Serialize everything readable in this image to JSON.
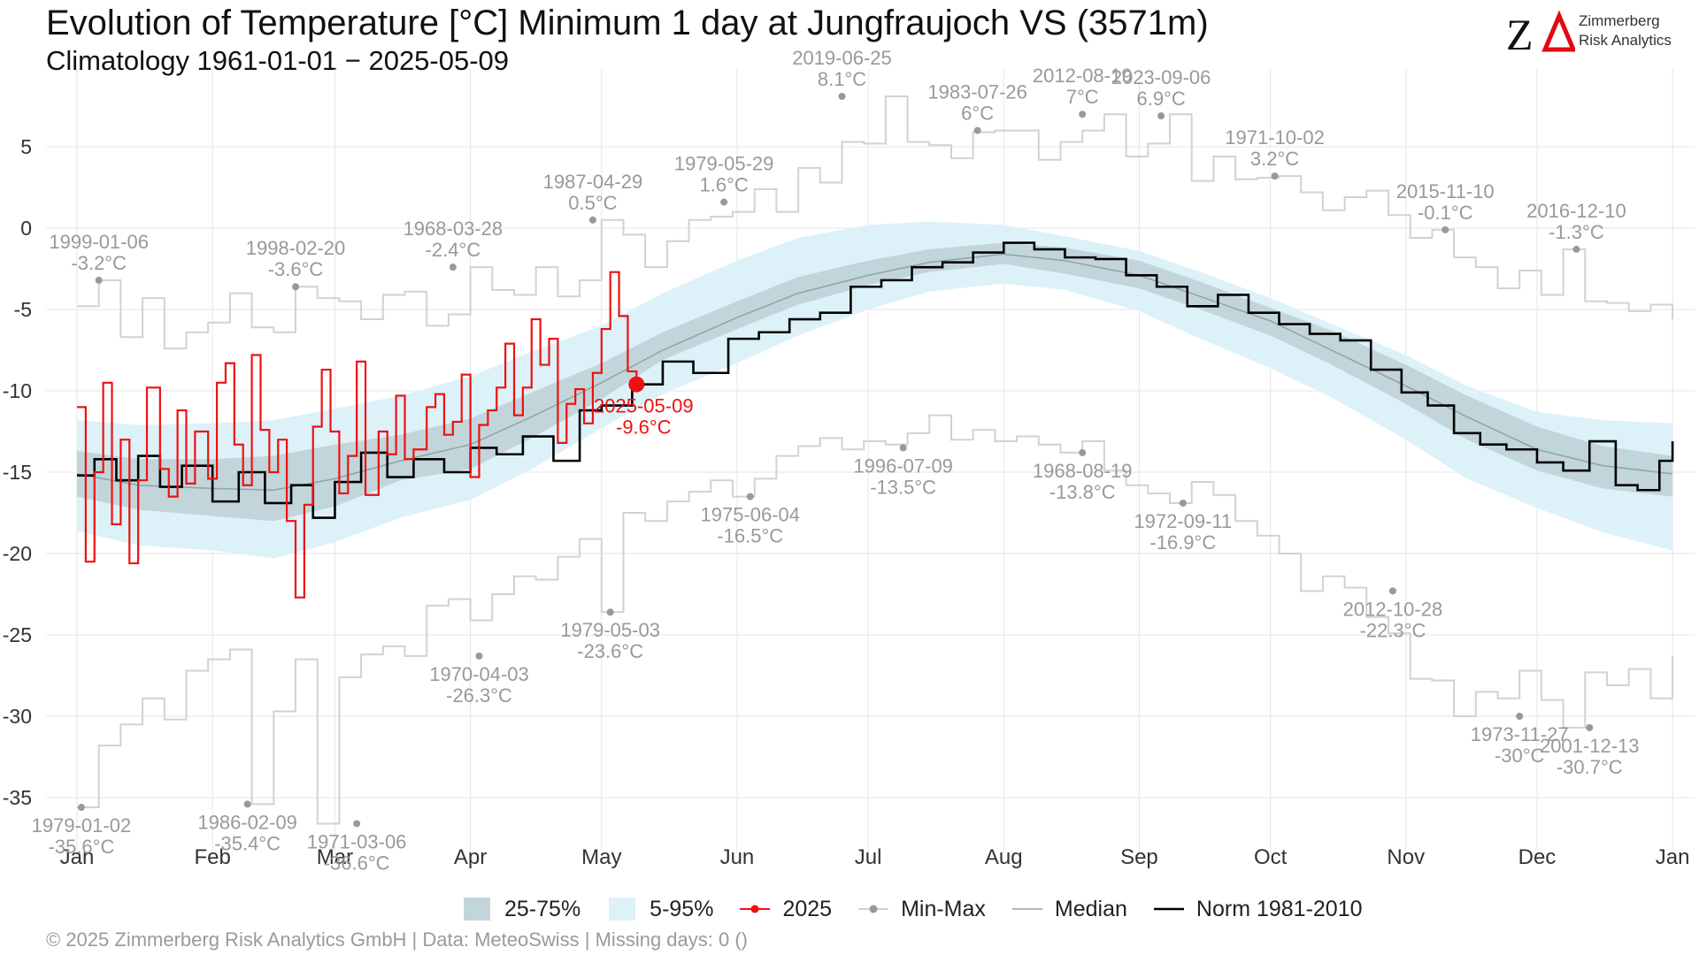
{
  "header": {
    "title": "Evolution of Temperature [°C] Minimum 1 day at Jungfraujoch  VS (3571m)",
    "subtitle": "Climatology 1961-01-01 − 2025-05-09"
  },
  "logo": {
    "mark": "ZΔ",
    "line1": "Zimmerberg",
    "line2": "Risk Analytics"
  },
  "footer": {
    "text": "©  2025 Zimmerberg Risk Analytics GmbH | Data: MeteoSwiss | Missing days: 0 ()"
  },
  "legend": [
    {
      "label": "25-75%",
      "kind": "band-dark"
    },
    {
      "label": "5-95%",
      "kind": "band-light"
    },
    {
      "label": "2025",
      "kind": "line-point-red"
    },
    {
      "label": "Min-Max",
      "kind": "line-point-grey"
    },
    {
      "label": "Median",
      "kind": "line-thin"
    },
    {
      "label": "Norm 1981-2010",
      "kind": "line-black"
    }
  ],
  "colors": {
    "band_25_75": "#c2d5db",
    "band_5_95": "#ddf1f8",
    "current_year": "#ee1111",
    "minmax": "#d2d2d2",
    "minmax_point": "#999999",
    "annotation": "#999999",
    "median": "#8fa3a8",
    "norm": "#000000",
    "grid": "#e6e6e6"
  },
  "chart_data": {
    "type": "line",
    "title": "Evolution of Temperature [°C] Minimum 1 day at Jungfraujoch  VS (3571m)",
    "subtitle": "Climatology 1961-01-01 − 2025-05-09",
    "ylabel": "",
    "xlabel": "",
    "ylim": [
      -38,
      8.5
    ],
    "yticks": [
      5,
      0,
      -5,
      -10,
      -15,
      -20,
      -25,
      -30,
      -35
    ],
    "yticklabels": [
      "5",
      "0",
      "-5",
      "-10",
      "-15",
      "-20",
      "-25",
      "-30",
      "-35"
    ],
    "xlim": [
      -5,
      370
    ],
    "xticks": [
      1,
      32,
      60,
      91,
      121,
      152,
      182,
      213,
      244,
      274,
      305,
      335,
      366
    ],
    "xticklabels": [
      "Jan",
      "Feb",
      "Mar",
      "Apr",
      "May",
      "Jun",
      "Jul",
      "Aug",
      "Sep",
      "Oct",
      "Nov",
      "Dec",
      "Jan"
    ],
    "grid": true,
    "legend_position": "bottom",
    "x_unit": "day of year",
    "band_5_95": {
      "x": [
        1,
        15,
        32,
        46,
        60,
        75,
        91,
        105,
        121,
        135,
        152,
        166,
        182,
        196,
        213,
        227,
        244,
        258,
        274,
        288,
        305,
        319,
        335,
        350,
        366
      ],
      "low": [
        -18.6,
        -19.5,
        -19.8,
        -20.3,
        -19.3,
        -17.8,
        -16.7,
        -14.8,
        -12.3,
        -10.2,
        -8.3,
        -6.6,
        -5.0,
        -3.9,
        -3.4,
        -3.8,
        -5.1,
        -6.8,
        -8.6,
        -10.4,
        -13.0,
        -15.4,
        -17.2,
        -18.7,
        -19.8
      ],
      "high": [
        -11.8,
        -12.1,
        -12.0,
        -11.8,
        -11.1,
        -10.3,
        -9.1,
        -7.6,
        -6.0,
        -4.0,
        -2.0,
        -0.6,
        0.2,
        0.4,
        0.2,
        -0.5,
        -1.4,
        -2.7,
        -4.3,
        -5.9,
        -7.8,
        -9.7,
        -11.3,
        -11.8,
        -12.0
      ]
    },
    "band_25_75": {
      "x": [
        1,
        15,
        32,
        46,
        60,
        75,
        91,
        105,
        121,
        135,
        152,
        166,
        182,
        196,
        213,
        227,
        244,
        258,
        274,
        288,
        305,
        319,
        335,
        350,
        366
      ],
      "low": [
        -16.5,
        -17.3,
        -17.7,
        -18.0,
        -17.1,
        -15.5,
        -14.8,
        -12.9,
        -10.5,
        -8.1,
        -6.2,
        -4.7,
        -3.5,
        -2.7,
        -2.2,
        -2.8,
        -3.7,
        -5.0,
        -6.6,
        -8.4,
        -10.8,
        -13.0,
        -14.9,
        -16.0,
        -16.5
      ],
      "high": [
        -13.7,
        -14.2,
        -14.2,
        -14.0,
        -13.3,
        -12.7,
        -11.7,
        -10.1,
        -8.3,
        -6.4,
        -4.5,
        -3.0,
        -2.0,
        -1.3,
        -0.9,
        -1.2,
        -2.0,
        -3.3,
        -4.9,
        -6.3,
        -8.4,
        -10.3,
        -12.2,
        -13.4,
        -14.0
      ]
    },
    "series": [
      {
        "name": "Median",
        "x": [
          1,
          15,
          32,
          46,
          60,
          75,
          91,
          105,
          121,
          135,
          152,
          166,
          182,
          196,
          213,
          227,
          244,
          258,
          274,
          288,
          305,
          319,
          335,
          350,
          366
        ],
        "values": [
          -15.1,
          -15.8,
          -16.0,
          -16.1,
          -15.4,
          -14.3,
          -13.3,
          -11.6,
          -9.5,
          -7.5,
          -5.5,
          -4.0,
          -2.9,
          -2.1,
          -1.6,
          -2.0,
          -2.9,
          -4.2,
          -5.7,
          -7.5,
          -9.7,
          -11.6,
          -13.6,
          -14.6,
          -15.1
        ]
      },
      {
        "name": "Norm 1981-2010",
        "x": [
          1,
          5,
          10,
          15,
          20,
          25,
          32,
          38,
          44,
          50,
          55,
          60,
          66,
          72,
          78,
          85,
          91,
          97,
          103,
          110,
          116,
          121,
          128,
          135,
          142,
          150,
          157,
          164,
          171,
          178,
          185,
          192,
          199,
          206,
          213,
          220,
          227,
          234,
          241,
          248,
          255,
          262,
          269,
          276,
          283,
          290,
          297,
          304,
          310,
          316,
          322,
          328,
          335,
          341,
          347,
          353,
          358,
          363,
          366
        ],
        "values": [
          -15.2,
          -14.2,
          -15.5,
          -14.0,
          -15.9,
          -14.6,
          -16.8,
          -15.0,
          -16.9,
          -15.8,
          -17.8,
          -15.6,
          -13.8,
          -15.3,
          -14.2,
          -15.0,
          -13.5,
          -13.9,
          -12.8,
          -14.3,
          -11.2,
          -10.9,
          -9.6,
          -8.2,
          -8.9,
          -6.8,
          -6.4,
          -5.6,
          -5.2,
          -3.6,
          -3.2,
          -2.4,
          -2.1,
          -1.5,
          -0.9,
          -1.3,
          -1.8,
          -1.9,
          -2.9,
          -3.6,
          -4.8,
          -4.1,
          -5.2,
          -5.9,
          -6.5,
          -6.9,
          -8.7,
          -10.1,
          -10.9,
          -12.6,
          -13.3,
          -13.6,
          -14.4,
          -14.9,
          -13.1,
          -15.8,
          -16.1,
          -14.3,
          -13.1
        ]
      },
      {
        "name": "2025",
        "x": [
          1,
          3,
          5,
          7,
          9,
          11,
          13,
          15,
          17,
          20,
          22,
          24,
          26,
          28,
          31,
          33,
          35,
          37,
          39,
          41,
          43,
          45,
          47,
          49,
          51,
          53,
          55,
          57,
          59,
          61,
          63,
          65,
          67,
          70,
          72,
          74,
          76,
          78,
          81,
          83,
          85,
          87,
          89,
          91,
          93,
          95,
          97,
          99,
          101,
          103,
          105,
          107,
          109,
          111,
          113,
          115,
          117,
          119,
          121,
          123,
          125,
          127,
          129
        ],
        "values": [
          -11.0,
          -20.5,
          -15.0,
          -9.5,
          -18.2,
          -13.0,
          -20.6,
          -15.5,
          -9.8,
          -14.8,
          -16.5,
          -11.2,
          -15.7,
          -12.5,
          -15.4,
          -9.5,
          -8.3,
          -13.3,
          -15.8,
          -7.8,
          -12.4,
          -15.0,
          -13.0,
          -18.0,
          -22.7,
          -17.0,
          -12.2,
          -8.7,
          -12.5,
          -16.3,
          -14.0,
          -8.2,
          -16.4,
          -12.5,
          -13.9,
          -10.3,
          -14.2,
          -13.6,
          -11.0,
          -10.2,
          -12.7,
          -11.9,
          -9.0,
          -15.3,
          -12.1,
          -11.2,
          -9.8,
          -7.1,
          -11.5,
          -9.8,
          -5.6,
          -8.4,
          -6.8,
          -13.2,
          -10.8,
          -9.9,
          -12.0,
          -8.9,
          -6.2,
          -2.7,
          -5.4,
          -8.8,
          -9.6
        ]
      },
      {
        "name": "Max",
        "x": [
          1,
          6,
          11,
          16,
          21,
          26,
          31,
          36,
          41,
          46,
          51,
          56,
          61,
          66,
          71,
          76,
          81,
          86,
          91,
          96,
          101,
          106,
          111,
          116,
          121,
          126,
          131,
          136,
          141,
          146,
          151,
          156,
          161,
          166,
          171,
          176,
          181,
          186,
          191,
          196,
          201,
          206,
          211,
          216,
          221,
          226,
          231,
          236,
          241,
          246,
          251,
          256,
          261,
          266,
          271,
          276,
          281,
          286,
          291,
          296,
          301,
          306,
          311,
          316,
          321,
          326,
          331,
          336,
          341,
          346,
          351,
          356,
          361,
          366
        ],
        "values": [
          -4.8,
          -3.2,
          -6.7,
          -4.3,
          -7.4,
          -6.4,
          -5.8,
          -4.0,
          -6.1,
          -6.4,
          -3.6,
          -4.3,
          -4.5,
          -5.6,
          -4.1,
          -3.9,
          -6.0,
          -5.3,
          -2.4,
          -3.8,
          -4.1,
          -2.4,
          -4.2,
          -3.2,
          0.5,
          -0.4,
          -2.4,
          -0.8,
          0.5,
          0.7,
          1.0,
          2.4,
          1.0,
          3.7,
          2.8,
          5.3,
          5.2,
          8.1,
          5.3,
          5.1,
          4.3,
          5.9,
          6.0,
          6.0,
          4.2,
          5.3,
          6.0,
          7.0,
          4.4,
          5.2,
          7.0,
          2.9,
          4.4,
          3.0,
          3.1,
          3.2,
          2.2,
          1.1,
          1.9,
          2.3,
          0.8,
          -0.6,
          -0.1,
          -1.8,
          -2.4,
          -3.7,
          -2.6,
          -4.1,
          -1.3,
          -4.5,
          -4.6,
          -5.1,
          -4.7,
          -5.6
        ]
      },
      {
        "name": "Min",
        "x": [
          1,
          6,
          11,
          16,
          21,
          26,
          31,
          36,
          41,
          46,
          51,
          56,
          61,
          66,
          71,
          76,
          81,
          86,
          91,
          96,
          101,
          106,
          111,
          116,
          121,
          126,
          131,
          136,
          141,
          146,
          151,
          156,
          161,
          166,
          171,
          176,
          181,
          186,
          191,
          196,
          201,
          206,
          211,
          216,
          221,
          226,
          231,
          236,
          241,
          246,
          251,
          256,
          261,
          266,
          271,
          276,
          281,
          286,
          291,
          296,
          301,
          306,
          311,
          316,
          321,
          326,
          331,
          336,
          341,
          346,
          351,
          356,
          361,
          366
        ],
        "values": [
          -35.6,
          -31.8,
          -30.5,
          -28.9,
          -30.2,
          -27.2,
          -26.5,
          -25.9,
          -35.4,
          -29.7,
          -26.5,
          -36.6,
          -27.6,
          -26.2,
          -25.7,
          -26.3,
          -23.2,
          -22.8,
          -24.1,
          -22.5,
          -21.4,
          -21.6,
          -20.2,
          -19.1,
          -23.6,
          -17.5,
          -18.0,
          -16.8,
          -16.2,
          -15.5,
          -16.5,
          -15.4,
          -14.0,
          -13.4,
          -12.9,
          -13.6,
          -13.1,
          -13.3,
          -12.6,
          -11.5,
          -13.0,
          -12.4,
          -13.1,
          -12.8,
          -13.3,
          -13.8,
          -13.1,
          -14.9,
          -15.8,
          -16.3,
          -16.9,
          -15.6,
          -16.4,
          -18.0,
          -18.9,
          -20.0,
          -22.3,
          -21.4,
          -22.1,
          -23.9,
          -24.9,
          -27.7,
          -27.8,
          -30.0,
          -28.5,
          -28.9,
          -27.2,
          -29.0,
          -30.7,
          -27.3,
          -28.1,
          -27.1,
          -28.9,
          -26.3
        ]
      }
    ],
    "annotations": [
      {
        "x": 6,
        "y": -3.2,
        "date": "1999-01-06",
        "value": "-3.2°C",
        "group": "max"
      },
      {
        "x": 51,
        "y": -3.6,
        "date": "1998-02-20",
        "value": "-3.6°C",
        "group": "max"
      },
      {
        "x": 87,
        "y": -2.4,
        "date": "1968-03-28",
        "value": "-2.4°C",
        "group": "max"
      },
      {
        "x": 119,
        "y": 0.5,
        "date": "1987-04-29",
        "value": "0.5°C",
        "group": "max"
      },
      {
        "x": 149,
        "y": 1.6,
        "date": "1979-05-29",
        "value": "1.6°C",
        "group": "max"
      },
      {
        "x": 176,
        "y": 8.1,
        "date": "2019-06-25",
        "value": "8.1°C",
        "group": "max"
      },
      {
        "x": 207,
        "y": 6.0,
        "date": "1983-07-26",
        "value": "6°C",
        "group": "max"
      },
      {
        "x": 231,
        "y": 7.0,
        "date": "2012-08-19",
        "value": "7°C",
        "group": "max"
      },
      {
        "x": 249,
        "y": 6.9,
        "date": "2023-09-06",
        "value": "6.9°C",
        "group": "max"
      },
      {
        "x": 275,
        "y": 3.2,
        "date": "1971-10-02",
        "value": "3.2°C",
        "group": "max"
      },
      {
        "x": 314,
        "y": -0.1,
        "date": "2015-11-10",
        "value": "-0.1°C",
        "group": "max"
      },
      {
        "x": 344,
        "y": -1.3,
        "date": "2016-12-10",
        "value": "-1.3°C",
        "group": "max"
      },
      {
        "x": 2,
        "y": -35.6,
        "date": "1979-01-02",
        "value": "-35.6°C",
        "group": "min"
      },
      {
        "x": 40,
        "y": -35.4,
        "date": "1986-02-09",
        "value": "-35.4°C",
        "group": "min"
      },
      {
        "x": 65,
        "y": -36.6,
        "date": "1971-03-06",
        "value": "-36.6°C",
        "group": "min"
      },
      {
        "x": 93,
        "y": -26.3,
        "date": "1970-04-03",
        "value": "-26.3°C",
        "group": "min"
      },
      {
        "x": 123,
        "y": -23.6,
        "date": "1979-05-03",
        "value": "-23.6°C",
        "group": "min"
      },
      {
        "x": 155,
        "y": -16.5,
        "date": "1975-06-04",
        "value": "-16.5°C",
        "group": "min"
      },
      {
        "x": 190,
        "y": -13.5,
        "date": "1996-07-09",
        "value": "-13.5°C",
        "group": "min"
      },
      {
        "x": 231,
        "y": -13.8,
        "date": "1968-08-19",
        "value": "-13.8°C",
        "group": "min"
      },
      {
        "x": 254,
        "y": -16.9,
        "date": "1972-09-11",
        "value": "-16.9°C",
        "group": "min"
      },
      {
        "x": 302,
        "y": -22.3,
        "date": "2012-10-28",
        "value": "-22.3°C",
        "group": "min"
      },
      {
        "x": 331,
        "y": -30.0,
        "date": "1973-11-27",
        "value": "-30°C",
        "group": "min"
      },
      {
        "x": 347,
        "y": -30.7,
        "date": "2001-12-13",
        "value": "-30.7°C",
        "group": "min"
      }
    ],
    "current_point": {
      "x": 129,
      "y": -9.6,
      "date": "2025-05-09",
      "value": "-9.6°C"
    }
  }
}
